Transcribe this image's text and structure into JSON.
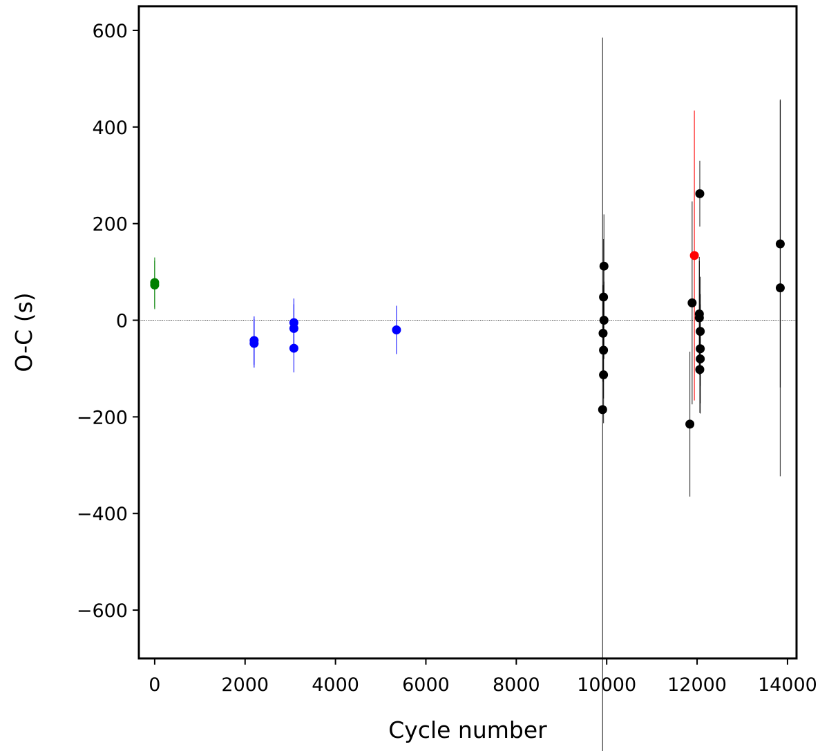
{
  "chart_data": {
    "type": "scatter",
    "xlabel": "Cycle number",
    "ylabel": "O-C (s)",
    "xlim": [
      -350,
      14200
    ],
    "ylim": [
      -700,
      650
    ],
    "xticks": [
      0,
      2000,
      4000,
      6000,
      8000,
      10000,
      12000,
      14000
    ],
    "xtick_labels": [
      "0",
      "2000",
      "4000",
      "6000",
      "8000",
      "10000",
      "12000",
      "14000"
    ],
    "yticks": [
      -600,
      -400,
      -200,
      0,
      200,
      400,
      600
    ],
    "ytick_labels": [
      "−600",
      "−400",
      "−200",
      "0",
      "200",
      "400",
      "600"
    ],
    "reference_line": 0,
    "grid": false,
    "series": [
      {
        "color": "#008000",
        "points": [
          {
            "x": 0,
            "y": 78,
            "err": 52
          },
          {
            "x": 0,
            "y": 73,
            "err": 50
          }
        ]
      },
      {
        "color": "#0000ff",
        "points": [
          {
            "x": 2200,
            "y": -42,
            "err": 50
          },
          {
            "x": 2200,
            "y": -48,
            "err": 50
          },
          {
            "x": 3080,
            "y": -5,
            "err": 50
          },
          {
            "x": 3080,
            "y": -17,
            "err": 50
          },
          {
            "x": 3080,
            "y": -58,
            "err": 50
          },
          {
            "x": 5350,
            "y": -20,
            "err": 50
          }
        ]
      },
      {
        "color": "#000000",
        "points": [
          {
            "x": 9940,
            "y": 112,
            "err": 107
          },
          {
            "x": 9930,
            "y": 48,
            "err": 120
          },
          {
            "x": 9940,
            "y": 0,
            "err": 80
          },
          {
            "x": 9920,
            "y": -27,
            "err": 100
          },
          {
            "x": 9930,
            "y": -62,
            "err": 100
          },
          {
            "x": 9930,
            "y": -113,
            "err": 100
          },
          {
            "x": 9910,
            "y": -185,
            "err": 770
          },
          {
            "x": 11840,
            "y": -215,
            "err": 150
          },
          {
            "x": 11890,
            "y": 36,
            "err": 210
          },
          {
            "x": 12060,
            "y": 262,
            "err": 68
          },
          {
            "x": 12050,
            "y": 13,
            "err": 118
          },
          {
            "x": 12050,
            "y": 5,
            "err": 118
          },
          {
            "x": 12070,
            "y": -23,
            "err": 113
          },
          {
            "x": 12070,
            "y": -59,
            "err": 113
          },
          {
            "x": 12070,
            "y": -80,
            "err": 113
          },
          {
            "x": 12060,
            "y": -102,
            "err": 90
          },
          {
            "x": 13840,
            "y": 158,
            "err": 297
          },
          {
            "x": 13840,
            "y": 67,
            "err": 390
          }
        ]
      },
      {
        "color": "#ff0000",
        "points": [
          {
            "x": 11940,
            "y": 134,
            "err": 300
          }
        ]
      }
    ]
  }
}
